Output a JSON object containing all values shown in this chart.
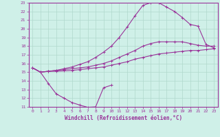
{
  "xlabel": "Windchill (Refroidissement éolien,°C)",
  "bg_color": "#cff0e8",
  "grid_color": "#b0d8cc",
  "line_color": "#993399",
  "spine_color": "#993399",
  "xlim": [
    -0.5,
    23.5
  ],
  "ylim": [
    11,
    23
  ],
  "xticks": [
    0,
    1,
    2,
    3,
    4,
    5,
    6,
    7,
    8,
    9,
    10,
    11,
    12,
    13,
    14,
    15,
    16,
    17,
    18,
    19,
    20,
    21,
    22,
    23
  ],
  "yticks": [
    11,
    12,
    13,
    14,
    15,
    16,
    17,
    18,
    19,
    20,
    21,
    22,
    23
  ],
  "line1_x": [
    0,
    1,
    2,
    3,
    4,
    5,
    6,
    7,
    8,
    9,
    10,
    11,
    12,
    13,
    14,
    15,
    16,
    17,
    18,
    19,
    20,
    21,
    22,
    23
  ],
  "line1_y": [
    15.5,
    15.0,
    15.1,
    15.1,
    15.15,
    15.2,
    15.3,
    15.4,
    15.5,
    15.6,
    15.8,
    16.0,
    16.2,
    16.5,
    16.7,
    16.9,
    17.1,
    17.2,
    17.3,
    17.4,
    17.5,
    17.5,
    17.6,
    17.7
  ],
  "line2_x": [
    0,
    1,
    2,
    3,
    4,
    5,
    6,
    7,
    8,
    9,
    10,
    11,
    12,
    13,
    14,
    15,
    16,
    17,
    18,
    19,
    20,
    21,
    22,
    23
  ],
  "line2_y": [
    15.5,
    15.0,
    15.1,
    15.2,
    15.3,
    15.4,
    15.5,
    15.6,
    15.8,
    16.0,
    16.3,
    16.7,
    17.1,
    17.5,
    18.0,
    18.3,
    18.5,
    18.5,
    18.5,
    18.5,
    18.3,
    18.1,
    18.0,
    18.0
  ],
  "line3_x": [
    0,
    1,
    2,
    3,
    4,
    5,
    6,
    7,
    8,
    9,
    10,
    11,
    12,
    13,
    14,
    15,
    16,
    17,
    18,
    19,
    20,
    21,
    22,
    23
  ],
  "line3_y": [
    15.5,
    15.0,
    15.1,
    15.2,
    15.4,
    15.6,
    15.9,
    16.2,
    16.7,
    17.3,
    18.0,
    19.0,
    20.2,
    21.5,
    22.7,
    23.0,
    23.0,
    22.5,
    22.0,
    21.3,
    20.5,
    20.3,
    18.2,
    17.8
  ],
  "line4_x": [
    0,
    1,
    2,
    3,
    4,
    5,
    6,
    7,
    8,
    9,
    10
  ],
  "line4_y": [
    15.5,
    15.0,
    13.7,
    12.5,
    12.0,
    11.5,
    11.2,
    10.95,
    11.0,
    13.2,
    13.5
  ]
}
